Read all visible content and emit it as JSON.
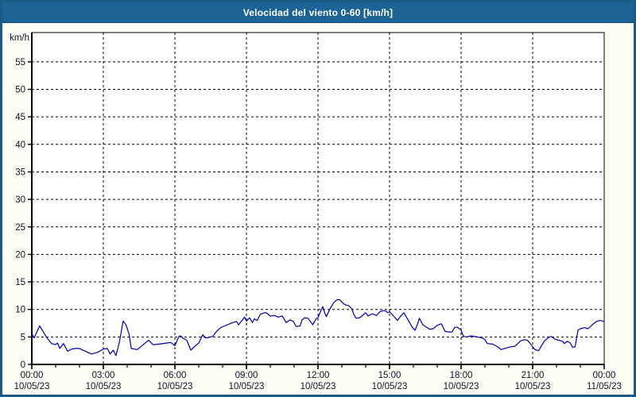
{
  "window": {
    "title": "Velocidad del viento 0-60 [km/h]"
  },
  "colors": {
    "titlebar_bg": "#1e6395",
    "window_border": "#1a5a86",
    "background": "#fdfdf6",
    "plot_bg": "#fffffe",
    "grid": "#000000",
    "axis": "#000000",
    "axis_text": "#10102a",
    "line": "#0000aa",
    "title_text": "#ffffff"
  },
  "chart_data": {
    "type": "line",
    "title": "Velocidad del viento 0-60 [km/h]",
    "ylabel": "km/h",
    "xlabel": "",
    "ylim": [
      0,
      60
    ],
    "xlim_hours": [
      0,
      24
    ],
    "grid": "dashed",
    "legend": "none",
    "y_ticks": [
      0,
      5,
      10,
      15,
      20,
      25,
      30,
      35,
      40,
      45,
      50,
      55
    ],
    "x_ticks": [
      {
        "hour": 0,
        "time": "00:00",
        "date": "10/05/23"
      },
      {
        "hour": 3,
        "time": "03:00",
        "date": "10/05/23"
      },
      {
        "hour": 6,
        "time": "06:00",
        "date": "10/05/23"
      },
      {
        "hour": 9,
        "time": "09:00",
        "date": "10/05/23"
      },
      {
        "hour": 12,
        "time": "12:00",
        "date": "10/05/23"
      },
      {
        "hour": 15,
        "time": "15:00",
        "date": "10/05/23"
      },
      {
        "hour": 18,
        "time": "18:00",
        "date": "10/05/23"
      },
      {
        "hour": 21,
        "time": "21:00",
        "date": "10/05/23"
      },
      {
        "hour": 24,
        "time": "00:00",
        "date": "11/05/23"
      }
    ],
    "minor_tick_hours": 1,
    "series": [
      {
        "name": "Velocidad del viento",
        "color": "#0000aa",
        "points": [
          [
            0,
            5.6
          ],
          [
            0.1,
            4.8
          ],
          [
            0.17,
            5.5
          ],
          [
            0.33,
            7.0
          ],
          [
            0.5,
            5.8
          ],
          [
            0.62,
            4.9
          ],
          [
            0.83,
            3.8
          ],
          [
            1,
            3.6
          ],
          [
            1.08,
            3.9
          ],
          [
            1.17,
            2.9
          ],
          [
            1.33,
            3.8
          ],
          [
            1.5,
            2.4
          ],
          [
            1.67,
            2.8
          ],
          [
            1.83,
            2.9
          ],
          [
            2,
            2.9
          ],
          [
            2.25,
            2.4
          ],
          [
            2.5,
            1.9
          ],
          [
            2.75,
            2.2
          ],
          [
            2.92,
            2.6
          ],
          [
            3,
            2.8
          ],
          [
            3.17,
            2.9
          ],
          [
            3.28,
            1.9
          ],
          [
            3.42,
            2.6
          ],
          [
            3.53,
            1.6
          ],
          [
            3.67,
            4.0
          ],
          [
            3.83,
            7.9
          ],
          [
            3.95,
            7.2
          ],
          [
            4.08,
            5.5
          ],
          [
            4.17,
            2.9
          ],
          [
            4.42,
            2.7
          ],
          [
            4.67,
            3.6
          ],
          [
            4.9,
            4.4
          ],
          [
            5.08,
            3.6
          ],
          [
            5.33,
            3.7
          ],
          [
            5.67,
            3.9
          ],
          [
            5.83,
            4.0
          ],
          [
            6,
            3.4
          ],
          [
            6.17,
            5.1
          ],
          [
            6.25,
            5.2
          ],
          [
            6.33,
            4.8
          ],
          [
            6.5,
            4.4
          ],
          [
            6.67,
            2.6
          ],
          [
            6.83,
            3.3
          ],
          [
            7,
            3.9
          ],
          [
            7.17,
            5.4
          ],
          [
            7.28,
            4.8
          ],
          [
            7.42,
            4.9
          ],
          [
            7.58,
            5.1
          ],
          [
            7.75,
            6.0
          ],
          [
            7.92,
            6.7
          ],
          [
            8.08,
            7.0
          ],
          [
            8.25,
            7.3
          ],
          [
            8.42,
            7.6
          ],
          [
            8.58,
            7.8
          ],
          [
            8.67,
            7.2
          ],
          [
            8.83,
            8.1
          ],
          [
            8.92,
            8.6
          ],
          [
            9,
            7.9
          ],
          [
            9.13,
            8.5
          ],
          [
            9.25,
            7.6
          ],
          [
            9.33,
            8.3
          ],
          [
            9.45,
            8.0
          ],
          [
            9.58,
            9.1
          ],
          [
            9.75,
            9.4
          ],
          [
            9.83,
            9.4
          ],
          [
            10,
            8.8
          ],
          [
            10.17,
            8.9
          ],
          [
            10.33,
            8.6
          ],
          [
            10.5,
            8.8
          ],
          [
            10.67,
            7.6
          ],
          [
            10.83,
            8.1
          ],
          [
            10.97,
            7.8
          ],
          [
            11.08,
            6.9
          ],
          [
            11.25,
            7.0
          ],
          [
            11.33,
            8.1
          ],
          [
            11.45,
            8.5
          ],
          [
            11.58,
            8.4
          ],
          [
            11.75,
            7.4
          ],
          [
            11.78,
            7.2
          ],
          [
            11.92,
            8.3
          ],
          [
            12,
            8.5
          ],
          [
            12.1,
            9.6
          ],
          [
            12.2,
            10.5
          ],
          [
            12.28,
            9.4
          ],
          [
            12.35,
            8.7
          ],
          [
            12.5,
            10.1
          ],
          [
            12.67,
            11.3
          ],
          [
            12.78,
            11.7
          ],
          [
            12.9,
            11.8
          ],
          [
            13.08,
            11.0
          ],
          [
            13.17,
            10.8
          ],
          [
            13.28,
            10.7
          ],
          [
            13.42,
            10.1
          ],
          [
            13.5,
            9.1
          ],
          [
            13.6,
            8.4
          ],
          [
            13.75,
            8.5
          ],
          [
            13.92,
            9.1
          ],
          [
            14,
            9.4
          ],
          [
            14.1,
            8.8
          ],
          [
            14.28,
            9.2
          ],
          [
            14.45,
            8.9
          ],
          [
            14.6,
            9.6
          ],
          [
            14.75,
            9.8
          ],
          [
            14.85,
            9.7
          ],
          [
            14.93,
            9.4
          ],
          [
            15,
            9.6
          ],
          [
            15.1,
            9.1
          ],
          [
            15.25,
            8.4
          ],
          [
            15.33,
            8.0
          ],
          [
            15.45,
            8.7
          ],
          [
            15.6,
            9.4
          ],
          [
            15.78,
            8.1
          ],
          [
            15.93,
            6.9
          ],
          [
            16.07,
            6.2
          ],
          [
            16.17,
            7.3
          ],
          [
            16.25,
            8.4
          ],
          [
            16.4,
            7.2
          ],
          [
            16.58,
            6.7
          ],
          [
            16.67,
            6.4
          ],
          [
            16.83,
            6.5
          ],
          [
            17,
            7.1
          ],
          [
            17.17,
            7.4
          ],
          [
            17.33,
            6.0
          ],
          [
            17.5,
            5.9
          ],
          [
            17.62,
            5.9
          ],
          [
            17.73,
            6.7
          ],
          [
            17.83,
            6.8
          ],
          [
            17.93,
            6.5
          ],
          [
            18,
            6.2
          ],
          [
            18.1,
            5.1
          ],
          [
            18.25,
            5.0
          ],
          [
            18.42,
            5.2
          ],
          [
            18.67,
            5.0
          ],
          [
            18.9,
            4.8
          ],
          [
            19,
            4.5
          ],
          [
            19.1,
            3.8
          ],
          [
            19.33,
            3.7
          ],
          [
            19.57,
            3.1
          ],
          [
            19.67,
            2.7
          ],
          [
            19.83,
            2.9
          ],
          [
            20.07,
            3.2
          ],
          [
            20.25,
            3.3
          ],
          [
            20.33,
            3.6
          ],
          [
            20.5,
            4.3
          ],
          [
            20.67,
            4.5
          ],
          [
            20.78,
            4.4
          ],
          [
            20.9,
            3.8
          ],
          [
            21,
            3.2
          ],
          [
            21.1,
            2.7
          ],
          [
            21.25,
            2.5
          ],
          [
            21.4,
            3.6
          ],
          [
            21.5,
            4.3
          ],
          [
            21.67,
            4.9
          ],
          [
            21.78,
            5.1
          ],
          [
            21.93,
            4.6
          ],
          [
            22.1,
            4.4
          ],
          [
            22.25,
            4.2
          ],
          [
            22.33,
            3.8
          ],
          [
            22.45,
            4.2
          ],
          [
            22.58,
            3.9
          ],
          [
            22.67,
            3.1
          ],
          [
            22.78,
            3.2
          ],
          [
            22.9,
            6.2
          ],
          [
            23,
            6.5
          ],
          [
            23.17,
            6.7
          ],
          [
            23.33,
            6.5
          ],
          [
            23.5,
            7.2
          ],
          [
            23.67,
            7.8
          ],
          [
            23.83,
            8.0
          ],
          [
            24,
            7.8
          ]
        ]
      }
    ]
  }
}
